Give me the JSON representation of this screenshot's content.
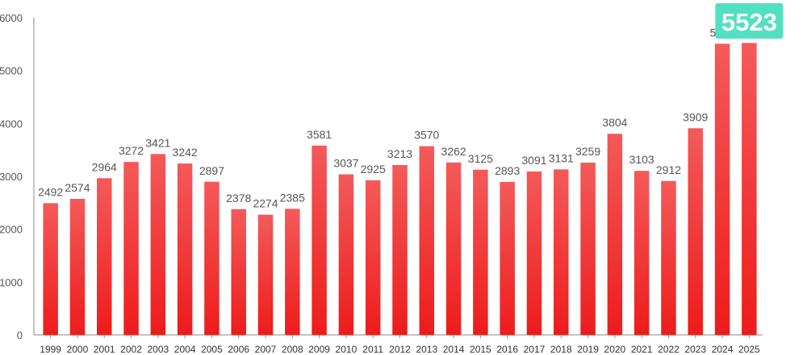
{
  "chart_data": {
    "type": "bar",
    "title": "",
    "xlabel": "",
    "ylabel": "",
    "categories": [
      "1999",
      "2000",
      "2001",
      "2002",
      "2003",
      "2004",
      "2005",
      "2006",
      "2007",
      "2008",
      "2009",
      "2010",
      "2011",
      "2012",
      "2013",
      "2014",
      "2015",
      "2016",
      "2017",
      "2018",
      "2019",
      "2020",
      "2021",
      "2022",
      "2023",
      "2024",
      "2025"
    ],
    "values": [
      2492,
      2574,
      2964,
      3272,
      3421,
      3242,
      2897,
      2378,
      2274,
      2385,
      3581,
      3037,
      2925,
      3213,
      3570,
      3262,
      3125,
      2893,
      3091,
      3131,
      3259,
      3804,
      3103,
      2912,
      3909,
      5507,
      5523
    ],
    "ylim": [
      0,
      6000
    ],
    "yticks": [
      0,
      1000,
      2000,
      3000,
      4000,
      5000,
      6000
    ],
    "grid": false,
    "legend": "none",
    "highlight": {
      "category": "2025",
      "label": "5523"
    },
    "colors": {
      "bar_top": "#f45a5a",
      "bar_bottom": "#ee1b1b",
      "highlight_bg": "#52e0c1",
      "axis": "#888888",
      "label": "#555555"
    }
  }
}
